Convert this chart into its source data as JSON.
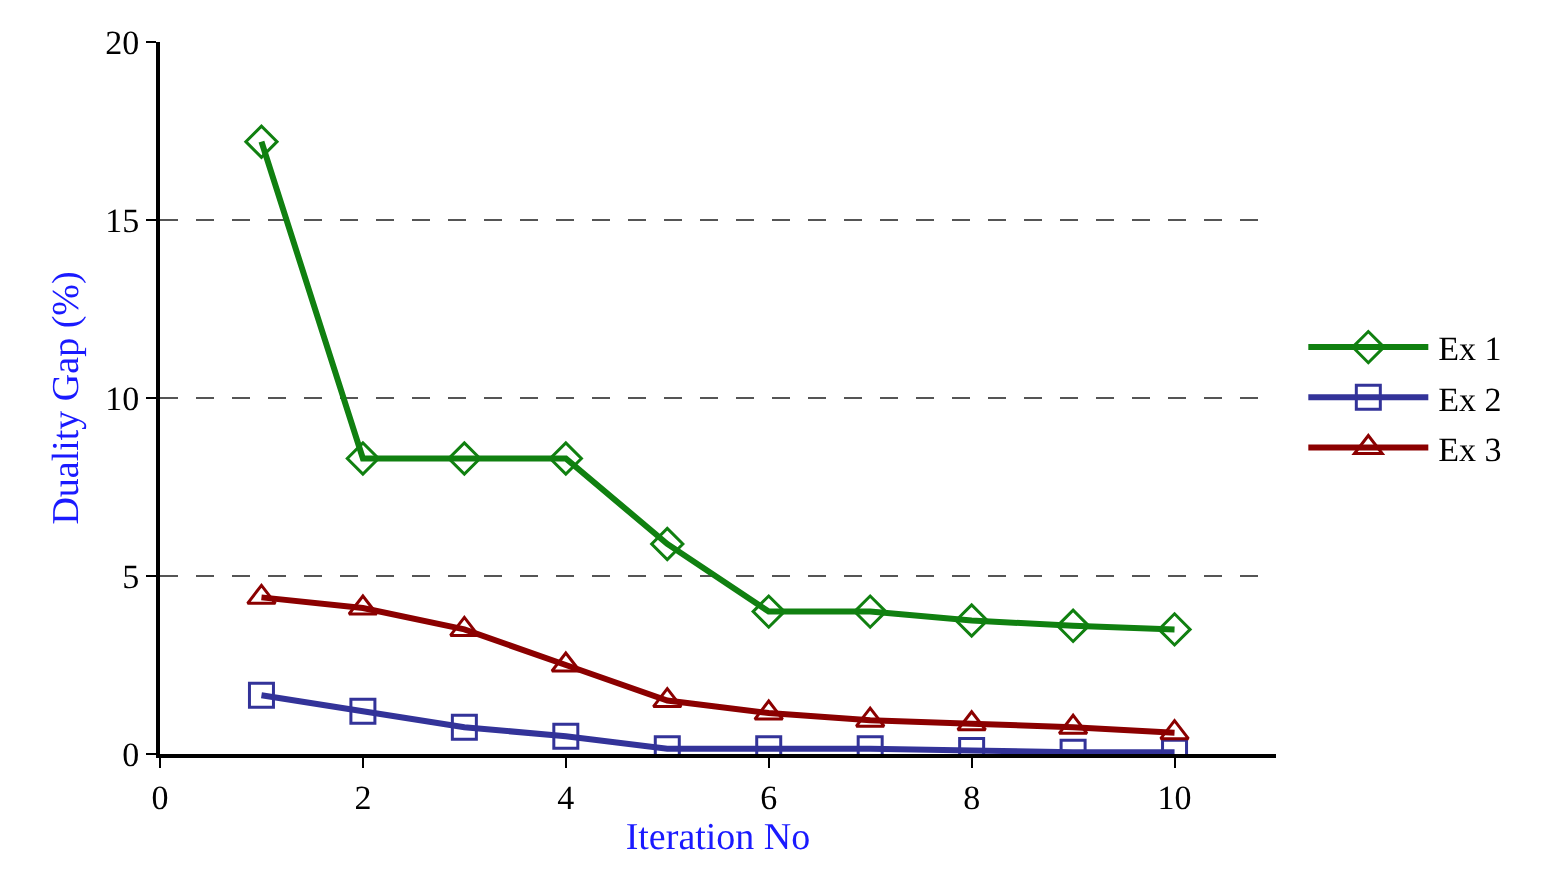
{
  "chart_data": {
    "type": "line",
    "xlabel": "Iteration No",
    "ylabel": "Duality Gap (%)",
    "x": [
      1,
      2,
      3,
      4,
      5,
      6,
      7,
      8,
      9,
      10
    ],
    "series": [
      {
        "name": "Ex 1",
        "color": "#108010",
        "marker": "diamond",
        "values": [
          17.2,
          8.3,
          8.3,
          8.3,
          5.9,
          4.0,
          4.0,
          3.75,
          3.6,
          3.5
        ]
      },
      {
        "name": "Ex 2",
        "color": "#333399",
        "marker": "square",
        "values": [
          1.65,
          1.2,
          0.75,
          0.5,
          0.15,
          0.15,
          0.15,
          0.1,
          0.05,
          0.05
        ]
      },
      {
        "name": "Ex 3",
        "color": "#8b0000",
        "marker": "triangle",
        "values": [
          4.4,
          4.1,
          3.5,
          2.5,
          1.5,
          1.15,
          0.95,
          0.85,
          0.75,
          0.6
        ]
      }
    ],
    "xlim": [
      0,
      11
    ],
    "xticks": [
      0,
      2,
      4,
      6,
      8,
      10
    ],
    "ylim": [
      0,
      20
    ],
    "yticks": [
      0,
      5,
      10,
      15,
      20
    ],
    "grid": "y",
    "legend": "right",
    "line_style": "solid"
  }
}
